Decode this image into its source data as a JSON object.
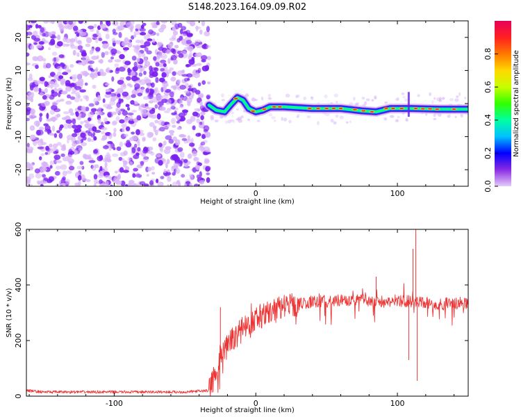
{
  "title": "S148.2023.164.09.09.R02",
  "colors": {
    "snr_line": "#ee3333",
    "speckle_light": "#d8b4f7",
    "speckle_dark": "#7a1ff0",
    "frame": "#000000"
  },
  "chart_data": [
    {
      "type": "heatmap",
      "name": "spectrogram",
      "xlabel": "Height of straight line (km)",
      "ylabel": "Frequency (Hz)",
      "xlim": [
        -162,
        150
      ],
      "ylim": [
        -25,
        25
      ],
      "xticks": [
        -100,
        0,
        100
      ],
      "yticks": [
        -20,
        -10,
        0,
        10,
        20
      ],
      "noise_region_x": [
        -162,
        -33
      ],
      "signal_region_x": [
        -33,
        150
      ],
      "band_center": [
        {
          "x": -33,
          "y": -0.5
        },
        {
          "x": -28,
          "y": -2.0
        },
        {
          "x": -22,
          "y": -2.5
        },
        {
          "x": -18,
          "y": -0.5
        },
        {
          "x": -13,
          "y": 1.8
        },
        {
          "x": -9,
          "y": 1.0
        },
        {
          "x": -5,
          "y": -1.5
        },
        {
          "x": 0,
          "y": -2.5
        },
        {
          "x": 5,
          "y": -2.0
        },
        {
          "x": 10,
          "y": -1.0
        },
        {
          "x": 20,
          "y": -1.0
        },
        {
          "x": 40,
          "y": -1.5
        },
        {
          "x": 60,
          "y": -1.5
        },
        {
          "x": 75,
          "y": -2.2
        },
        {
          "x": 85,
          "y": -2.5
        },
        {
          "x": 95,
          "y": -1.5
        },
        {
          "x": 110,
          "y": -1.5
        },
        {
          "x": 130,
          "y": -1.7
        },
        {
          "x": 150,
          "y": -1.7
        }
      ],
      "colorbar": {
        "label": "Normalized spectral amplitude",
        "range": [
          0,
          1
        ],
        "ticks": [
          "0.0",
          "0.2",
          "0.4",
          "0.6",
          "0.8"
        ],
        "tick_values": [
          0,
          0.2,
          0.4,
          0.6,
          0.8
        ],
        "colors": [
          "#e4ccfb",
          "#8a2be2",
          "#0000ff",
          "#00c0ff",
          "#00ffa0",
          "#30ff00",
          "#c8ff00",
          "#ffd800",
          "#ff7800",
          "#ff2020",
          "#e8005a"
        ]
      }
    },
    {
      "type": "line",
      "name": "snr",
      "xlabel": "Height of straight line (km)",
      "ylabel": "SNR (10 * v/v)",
      "xlim": [
        -162,
        150
      ],
      "ylim": [
        0,
        600
      ],
      "xticks": [
        -100,
        0,
        100
      ],
      "yticks": [
        0,
        200,
        400,
        600
      ],
      "series": [
        {
          "x": [
            -162,
            -150,
            -125,
            -100,
            -75,
            -50,
            -40,
            -33,
            -30,
            -25,
            -20,
            -15,
            -10,
            -5,
            0,
            10,
            20,
            30,
            40,
            60,
            80,
            90,
            100,
            110,
            120,
            130,
            140,
            150
          ],
          "values": [
            20,
            15,
            15,
            15,
            15,
            15,
            18,
            20,
            60,
            150,
            180,
            210,
            240,
            260,
            280,
            300,
            320,
            330,
            340,
            345,
            345,
            340,
            345,
            340,
            335,
            330,
            335,
            335
          ]
        }
      ],
      "spikes": [
        {
          "x": -25,
          "value": 320
        },
        {
          "x": 85,
          "value": 430
        },
        {
          "x": 111,
          "value": 530
        },
        {
          "x": 113,
          "value": 600
        },
        {
          "x": 114,
          "value": 55
        },
        {
          "x": 108,
          "value": 130
        }
      ]
    }
  ]
}
